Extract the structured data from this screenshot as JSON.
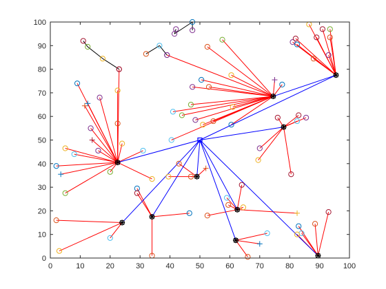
{
  "chart_data": {
    "type": "scatter",
    "title": "",
    "xlabel": "",
    "ylabel": "",
    "xlim": [
      0,
      100
    ],
    "ylim": [
      0,
      100
    ],
    "xticks": [
      0,
      10,
      20,
      30,
      40,
      50,
      60,
      70,
      80,
      90,
      100
    ],
    "yticks": [
      0,
      10,
      20,
      30,
      40,
      50,
      60,
      70,
      80,
      90,
      100
    ],
    "grid": false,
    "box": true,
    "colors": {
      "member_link": "#ff0000",
      "head_link": "#0000ff",
      "sink_link": "#0000ff",
      "cluster_head": "#000000",
      "sink": "#0000ff",
      "misc_link": "#000000",
      "palette": [
        "#0072bd",
        "#d95319",
        "#edb120",
        "#7e2f8e",
        "#77ac30",
        "#4dbeee",
        "#a2142f"
      ]
    },
    "sink": {
      "x": 50,
      "y": 50
    },
    "cluster_heads": [
      {
        "x": 22.5,
        "y": 40.5
      },
      {
        "x": 74.5,
        "y": 68.5
      },
      {
        "x": 95.5,
        "y": 77.5
      },
      {
        "x": 78,
        "y": 55.5
      },
      {
        "x": 49,
        "y": 34.5
      },
      {
        "x": 24,
        "y": 15
      },
      {
        "x": 34,
        "y": 17.5
      },
      {
        "x": 62.5,
        "y": 20.5
      },
      {
        "x": 62,
        "y": 7.5
      },
      {
        "x": 89.5,
        "y": 1
      }
    ],
    "head_links": [
      {
        "from": [
          22.5,
          40.5
        ],
        "to": [
          50,
          50
        ]
      },
      {
        "from": [
          74.5,
          68.5
        ],
        "to": [
          95.5,
          77.5
        ]
      },
      {
        "from": [
          95.5,
          77.5
        ],
        "to": [
          50,
          50
        ]
      },
      {
        "from": [
          78,
          55.5
        ],
        "to": [
          50,
          50
        ]
      },
      {
        "from": [
          49,
          34.5
        ],
        "to": [
          50,
          50
        ]
      },
      {
        "from": [
          24,
          15
        ],
        "to": [
          50,
          50
        ]
      },
      {
        "from": [
          34,
          17.5
        ],
        "to": [
          50,
          50
        ]
      },
      {
        "from": [
          62.5,
          20.5
        ],
        "to": [
          50,
          50
        ]
      },
      {
        "from": [
          62,
          7.5
        ],
        "to": [
          50,
          50
        ]
      },
      {
        "from": [
          89.5,
          1
        ],
        "to": [
          50,
          50
        ]
      }
    ],
    "members": [
      {
        "x": 11,
        "y": 92,
        "head": -1,
        "marker": "o",
        "color": 6
      },
      {
        "x": 12.5,
        "y": 89.5,
        "head": -1,
        "marker": "o",
        "color": 4
      },
      {
        "x": 17.5,
        "y": 84.5,
        "head": -1,
        "marker": "o",
        "color": 2
      },
      {
        "x": 23,
        "y": 80,
        "head": -1,
        "marker": "o",
        "color": 6
      },
      {
        "x": 9,
        "y": 74,
        "head": 0,
        "marker": "o",
        "color": 0
      },
      {
        "x": 11.5,
        "y": 64.5,
        "head": 0,
        "marker": "+",
        "color": 1
      },
      {
        "x": 12.5,
        "y": 65.5,
        "head": 0,
        "marker": "+",
        "color": 0
      },
      {
        "x": 16.5,
        "y": 68,
        "head": 0,
        "marker": "o",
        "color": 3
      },
      {
        "x": 22.5,
        "y": 71,
        "head": 0,
        "marker": "o",
        "color": 2
      },
      {
        "x": 23,
        "y": 80,
        "head": 0,
        "marker": "o",
        "color": 6
      },
      {
        "x": 22.5,
        "y": 57,
        "head": 0,
        "marker": "o",
        "color": 1
      },
      {
        "x": 13.5,
        "y": 55,
        "head": 0,
        "marker": "o",
        "color": 3
      },
      {
        "x": 14,
        "y": 50,
        "head": 0,
        "marker": "+",
        "color": 6
      },
      {
        "x": 5,
        "y": 46.5,
        "head": 0,
        "marker": "o",
        "color": 2
      },
      {
        "x": 8,
        "y": 44,
        "head": 0,
        "marker": "o",
        "color": 5
      },
      {
        "x": 16,
        "y": 45.5,
        "head": 0,
        "marker": "o",
        "color": 3
      },
      {
        "x": 24,
        "y": 48.5,
        "head": 0,
        "marker": "o",
        "color": 2
      },
      {
        "x": 2,
        "y": 39,
        "head": 0,
        "marker": "o",
        "color": 0
      },
      {
        "x": 3.5,
        "y": 35.5,
        "head": 0,
        "marker": "+",
        "color": 0
      },
      {
        "x": 5,
        "y": 27.5,
        "head": 0,
        "marker": "o",
        "color": 4
      },
      {
        "x": 20,
        "y": 36.5,
        "head": 0,
        "marker": "o",
        "color": 4
      },
      {
        "x": 34,
        "y": 33.5,
        "head": 0,
        "marker": "o",
        "color": 2
      },
      {
        "x": 31,
        "y": 45.5,
        "head": 0,
        "marker": "o",
        "color": 5
      },
      {
        "x": 32,
        "y": 86.5,
        "head": -1,
        "marker": "o",
        "color": 1
      },
      {
        "x": 36.5,
        "y": 90,
        "head": -1,
        "marker": "o",
        "color": 5
      },
      {
        "x": 39,
        "y": 86,
        "head": -1,
        "marker": "o",
        "color": 3
      },
      {
        "x": 41.5,
        "y": 95,
        "head": -1,
        "marker": "o",
        "color": 3
      },
      {
        "x": 42,
        "y": 97,
        "head": -1,
        "marker": "o",
        "color": 3
      },
      {
        "x": 47.5,
        "y": 100,
        "head": -1,
        "marker": "o",
        "color": 0
      },
      {
        "x": 47.5,
        "y": 96.5,
        "head": -1,
        "marker": "o",
        "color": 3
      },
      {
        "x": 39,
        "y": 86,
        "head": 1,
        "marker": "o",
        "color": 3
      },
      {
        "x": 52.5,
        "y": 89.5,
        "head": 1,
        "marker": "o",
        "color": 1
      },
      {
        "x": 57.5,
        "y": 92.5,
        "head": 1,
        "marker": "o",
        "color": 4
      },
      {
        "x": 60.5,
        "y": 77.5,
        "head": 1,
        "marker": "o",
        "color": 2
      },
      {
        "x": 50.5,
        "y": 75.5,
        "head": 1,
        "marker": "o",
        "color": 0
      },
      {
        "x": 53,
        "y": 72.5,
        "head": 1,
        "marker": "o",
        "color": 1
      },
      {
        "x": 47.5,
        "y": 72.5,
        "head": 1,
        "marker": "o",
        "color": 3
      },
      {
        "x": 47,
        "y": 65,
        "head": 1,
        "marker": "o",
        "color": 4
      },
      {
        "x": 41,
        "y": 62,
        "head": 1,
        "marker": "o",
        "color": 5
      },
      {
        "x": 44,
        "y": 60.5,
        "head": 1,
        "marker": "o",
        "color": 4
      },
      {
        "x": 48.5,
        "y": 58.5,
        "head": 1,
        "marker": "o",
        "color": 3
      },
      {
        "x": 51,
        "y": 56.5,
        "head": 1,
        "marker": "o",
        "color": 2
      },
      {
        "x": 54.5,
        "y": 58,
        "head": 1,
        "marker": "o",
        "color": 1
      },
      {
        "x": 60.5,
        "y": 56.5,
        "head": 1,
        "marker": "o",
        "color": 0
      },
      {
        "x": 61,
        "y": 64,
        "head": 1,
        "marker": "o",
        "color": 2
      },
      {
        "x": 75,
        "y": 75.5,
        "head": 1,
        "marker": "+",
        "color": 3
      },
      {
        "x": 77.5,
        "y": 73.5,
        "head": 1,
        "marker": "o",
        "color": 0
      },
      {
        "x": 40.5,
        "y": 50,
        "head": 1,
        "marker": "o",
        "color": 5
      },
      {
        "x": 81,
        "y": 91.5,
        "head": 2,
        "marker": "o",
        "color": 3
      },
      {
        "x": 82,
        "y": 93,
        "head": 2,
        "marker": "o",
        "color": 6
      },
      {
        "x": 82.5,
        "y": 90.5,
        "head": 2,
        "marker": "o",
        "color": 0
      },
      {
        "x": 86.5,
        "y": 99,
        "head": 2,
        "marker": "o",
        "color": 2
      },
      {
        "x": 88,
        "y": 84.5,
        "head": 2,
        "marker": "o",
        "color": 1
      },
      {
        "x": 89,
        "y": 93.5,
        "head": 2,
        "marker": "o",
        "color": 6
      },
      {
        "x": 91,
        "y": 97,
        "head": 2,
        "marker": "o",
        "color": 6
      },
      {
        "x": 93,
        "y": 86,
        "head": 2,
        "marker": "o",
        "color": 3
      },
      {
        "x": 93.5,
        "y": 97,
        "head": 2,
        "marker": "o",
        "color": 4
      },
      {
        "x": 93.5,
        "y": 93.5,
        "head": 2,
        "marker": "o",
        "color": 1
      },
      {
        "x": 76,
        "y": 59.5,
        "head": 3,
        "marker": "o",
        "color": 6
      },
      {
        "x": 70,
        "y": 46.5,
        "head": 3,
        "marker": "o",
        "color": 3
      },
      {
        "x": 69.5,
        "y": 41.5,
        "head": 3,
        "marker": "o",
        "color": 2
      },
      {
        "x": 80.5,
        "y": 35.5,
        "head": 3,
        "marker": "o",
        "color": 6
      },
      {
        "x": 82.5,
        "y": 58,
        "head": 3,
        "marker": "o",
        "color": 5
      },
      {
        "x": 83,
        "y": 60.5,
        "head": 3,
        "marker": "o",
        "color": 6
      },
      {
        "x": 85.5,
        "y": 59.5,
        "head": 3,
        "marker": "o",
        "color": 3
      },
      {
        "x": 43,
        "y": 40,
        "head": 4,
        "marker": "o",
        "color": 1
      },
      {
        "x": 39.5,
        "y": 34.5,
        "head": 4,
        "marker": "o",
        "color": 2
      },
      {
        "x": 47,
        "y": 34.5,
        "head": 4,
        "marker": "o",
        "color": 1
      },
      {
        "x": 52,
        "y": 38,
        "head": 4,
        "marker": "+",
        "color": 1
      },
      {
        "x": 2,
        "y": 16,
        "head": 5,
        "marker": "o",
        "color": 1
      },
      {
        "x": 3,
        "y": 3,
        "head": 5,
        "marker": "o",
        "color": 2
      },
      {
        "x": 20,
        "y": 8.5,
        "head": 5,
        "marker": "o",
        "color": 5
      },
      {
        "x": 29,
        "y": 29.5,
        "head": 6,
        "marker": "o",
        "color": 0
      },
      {
        "x": 29,
        "y": 27.5,
        "head": 6,
        "marker": "o",
        "color": 6
      },
      {
        "x": 34,
        "y": 1,
        "head": 6,
        "marker": "o",
        "color": 1
      },
      {
        "x": 46.5,
        "y": 19,
        "head": 6,
        "marker": "o",
        "color": 0
      },
      {
        "x": 64,
        "y": 31,
        "head": 7,
        "marker": "o",
        "color": 6
      },
      {
        "x": 59,
        "y": 25.5,
        "head": 7,
        "marker": "o",
        "color": 5
      },
      {
        "x": 59.5,
        "y": 22.5,
        "head": 7,
        "marker": "o",
        "color": 1
      },
      {
        "x": 64.5,
        "y": 21.5,
        "head": 7,
        "marker": "o",
        "color": 2
      },
      {
        "x": 52.5,
        "y": 18,
        "head": 7,
        "marker": "o",
        "color": 1
      },
      {
        "x": 82.5,
        "y": 19,
        "head": 7,
        "marker": "+",
        "color": 2
      },
      {
        "x": 66,
        "y": 0.5,
        "head": 8,
        "marker": "o",
        "color": 1
      },
      {
        "x": 70,
        "y": 6,
        "head": 8,
        "marker": "+",
        "color": 0
      },
      {
        "x": 72.5,
        "y": 10.5,
        "head": 8,
        "marker": "o",
        "color": 5
      },
      {
        "x": 83,
        "y": 13.5,
        "head": 9,
        "marker": "o",
        "color": 0
      },
      {
        "x": 84,
        "y": 10.5,
        "head": 9,
        "marker": "o",
        "color": 5
      },
      {
        "x": 82.5,
        "y": 10,
        "head": 9,
        "marker": "o",
        "color": 2
      },
      {
        "x": 88.5,
        "y": 14.5,
        "head": 9,
        "marker": "o",
        "color": 1
      },
      {
        "x": 93,
        "y": 19.5,
        "head": 9,
        "marker": "o",
        "color": 6
      }
    ],
    "misc_links": [
      {
        "from": [
          11,
          92
        ],
        "to": [
          12.5,
          89.5
        ]
      },
      {
        "from": [
          12.5,
          89.5
        ],
        "to": [
          17.5,
          84.5
        ]
      },
      {
        "from": [
          17.5,
          84.5
        ],
        "to": [
          23,
          80
        ]
      },
      {
        "from": [
          32,
          86.5
        ],
        "to": [
          36.5,
          90
        ]
      },
      {
        "from": [
          36.5,
          90
        ],
        "to": [
          39,
          86
        ]
      },
      {
        "from": [
          41.5,
          95
        ],
        "to": [
          42,
          97
        ]
      },
      {
        "from": [
          41.5,
          95
        ],
        "to": [
          47.5,
          100
        ]
      },
      {
        "from": [
          47.5,
          100
        ],
        "to": [
          47.5,
          96.5
        ]
      }
    ]
  }
}
